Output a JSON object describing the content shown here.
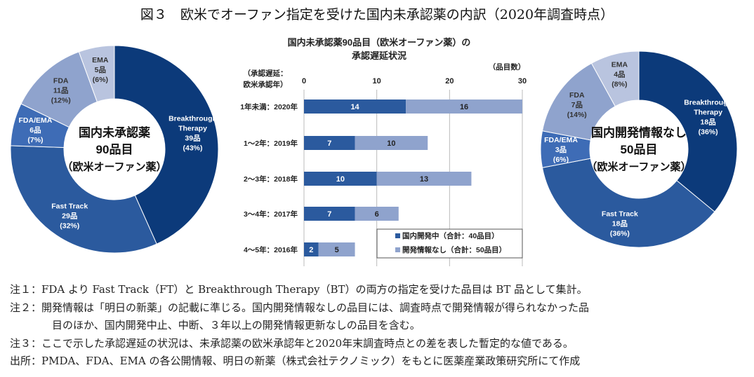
{
  "title": "図３　欧米でオーファン指定を受けた国内未承認薬の内訳（2020年調査時点）",
  "chart_data": [
    {
      "type": "pie",
      "donut": true,
      "center_label": [
        "国内未承認薬",
        "90品目",
        "（欧米オーファン薬）"
      ],
      "slices": [
        {
          "label": "Breakthrough Therapy",
          "value": 39,
          "count": "39品",
          "pct": "(43%)",
          "color": "#0c3a7a"
        },
        {
          "label": "Fast Track",
          "value": 29,
          "count": "29品",
          "pct": "(32%)",
          "color": "#2b5a9e"
        },
        {
          "label": "FDA/EMA",
          "value": 6,
          "count": "6品",
          "pct": "(7%)",
          "color": "#3e6cb6"
        },
        {
          "label": "FDA",
          "value": 11,
          "count": "11品",
          "pct": "(12%)",
          "color": "#8fa3cd"
        },
        {
          "label": "EMA",
          "value": 5,
          "count": "5品",
          "pct": "(6%)",
          "color": "#b9c4df"
        }
      ]
    },
    {
      "type": "bar",
      "orientation": "horizontal",
      "stacked": true,
      "title": [
        "国内未承認薬90品目（欧米オーファン薬）の",
        "承認遅延状況"
      ],
      "ylabel": [
        "（承認遅延：",
        "欧米承認年）"
      ],
      "xlabel": "（品目数）",
      "xlim": [
        0,
        30
      ],
      "xticks": [
        0,
        10,
        20,
        30
      ],
      "grid": true,
      "categories": [
        "1年未満：2020年",
        "1～2年：2019年",
        "2～3年：2018年",
        "3～4年：2017年",
        "4～5年：2016年"
      ],
      "series": [
        {
          "name": "国内開発中（合計：40品目）",
          "values": [
            14,
            7,
            10,
            7,
            2
          ],
          "color": "#2b5a9e"
        },
        {
          "name": "開発情報なし（合計：50品目）",
          "values": [
            16,
            10,
            13,
            6,
            5
          ],
          "color": "#8fa3cd"
        }
      ],
      "legend": "bottom-right"
    },
    {
      "type": "pie",
      "donut": true,
      "center_label": [
        "国内開発情報なし",
        "50品目",
        "（欧米オーファン薬）"
      ],
      "slices": [
        {
          "label": "Breakthrough Therapy",
          "value": 18,
          "count": "18品",
          "pct": "(36%)",
          "color": "#0c3a7a"
        },
        {
          "label": "Fast Track",
          "value": 18,
          "count": "18品",
          "pct": "(36%)",
          "color": "#2b5a9e"
        },
        {
          "label": "FDA/EMA",
          "value": 3,
          "count": "3品",
          "pct": "(6%)",
          "color": "#3e6cb6"
        },
        {
          "label": "FDA",
          "value": 7,
          "count": "7品",
          "pct": "(14%)",
          "color": "#8fa3cd"
        },
        {
          "label": "EMA",
          "value": 4,
          "count": "4品",
          "pct": "(8%)",
          "color": "#b9c4df"
        }
      ]
    }
  ],
  "notes": [
    "注１：FDA より Fast Track（FT）と Breakthrough Therapy（BT）の両方の指定を受けた品目は BT 品として集計。",
    "注２：開発情報は「明日の新薬」の記載に準じる。国内開発情報なしの品目には、調査時点で開発情報が得られなかった品",
    "目のほか、国内開発中止、中断、３年以上の開発情報更新なしの品目を含む。",
    "注３：ここで示した承認遅延の状況は、未承認薬の欧米承認年と2020年末調査時点との差を表した暫定的な値である。",
    "出所：PMDA、FDA、EMA の各公開情報、明日の新薬（株式会社テクノミック）をもとに医薬産業政策研究所にて作成"
  ]
}
